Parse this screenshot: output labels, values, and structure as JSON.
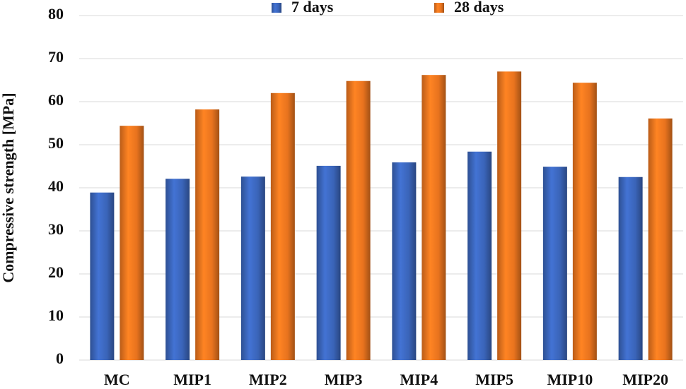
{
  "chart_data": {
    "type": "bar",
    "y_label": "Compressive strength [MPa]",
    "categories": [
      "MC",
      "MIP1",
      "MIP2",
      "MIP3",
      "MIP4",
      "MIP5",
      "MIP10",
      "MIP20"
    ],
    "series": [
      {
        "name": "7 days",
        "color": "#3a64b8",
        "values": [
          38.9,
          42.1,
          42.6,
          45.1,
          45.9,
          48.4,
          44.9,
          42.5
        ]
      },
      {
        "name": "28 days",
        "color": "#e8731e",
        "values": [
          54.4,
          58.2,
          62.0,
          64.8,
          66.2,
          67.0,
          64.4,
          56.1
        ]
      }
    ],
    "ylim": [
      0,
      80
    ],
    "yticks": [
      0,
      10,
      20,
      30,
      40,
      50,
      60,
      70,
      80
    ],
    "grid": true,
    "legend": "top"
  }
}
